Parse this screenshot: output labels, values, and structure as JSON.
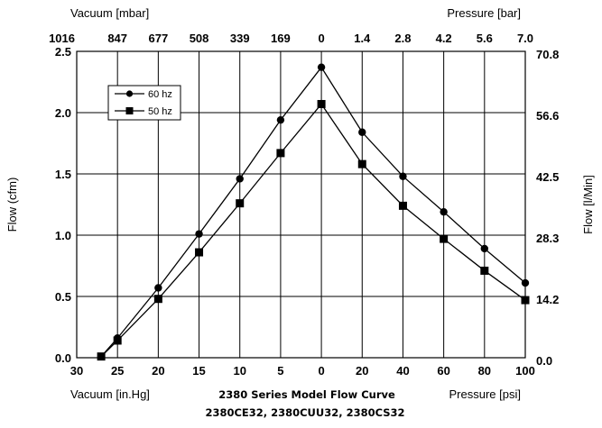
{
  "chart_data": {
    "type": "line",
    "x_positions_unit": "bottom axis tick index (0..11)",
    "bottom_ticks": [
      "30",
      "25",
      "20",
      "15",
      "10",
      "5",
      "0",
      "20",
      "40",
      "60",
      "80",
      "100"
    ],
    "top_ticks": [
      "1016",
      "847",
      "677",
      "508",
      "339",
      "169",
      "0",
      "1.4",
      "2.8",
      "4.2",
      "5.6",
      "7.0"
    ],
    "left_ticks": [
      "0.0",
      "0.5",
      "1.0",
      "1.5",
      "2.0",
      "2.5"
    ],
    "right_ticks": [
      "0.0",
      "14.2",
      "28.3",
      "42.5",
      "56.6",
      "70.8"
    ],
    "ylim": [
      0,
      2.5
    ],
    "y2lim": [
      0,
      70.8
    ],
    "top_left_label": "Vacuum [mbar]",
    "top_right_label": "Pressure [bar]",
    "bottom_left_label": "Vacuum [in.Hg]",
    "bottom_right_label": "Pressure [psi]",
    "ylabel": "Flow (cfm)",
    "y2label": "Flow [l/Min]",
    "caption_line1": "2380 Series Model Flow Curve",
    "caption_line2": "2380CE32, 2380CUU32, 2380CS32",
    "legend_position": "top-left",
    "grid": true,
    "series": [
      {
        "name": "60 hz",
        "marker": "circle",
        "x": [
          0.6,
          1,
          2,
          3,
          4,
          5,
          6,
          7,
          8,
          9,
          10,
          11
        ],
        "y": [
          0.01,
          0.16,
          0.57,
          1.01,
          1.46,
          1.94,
          2.37,
          1.84,
          1.48,
          1.19,
          0.89,
          0.61
        ]
      },
      {
        "name": "50 hz",
        "marker": "square",
        "x": [
          0.6,
          1,
          2,
          3,
          4,
          5,
          6,
          7,
          8,
          9,
          10,
          11
        ],
        "y": [
          0.01,
          0.14,
          0.48,
          0.86,
          1.26,
          1.67,
          2.07,
          1.58,
          1.24,
          0.97,
          0.71,
          0.47
        ]
      }
    ]
  }
}
